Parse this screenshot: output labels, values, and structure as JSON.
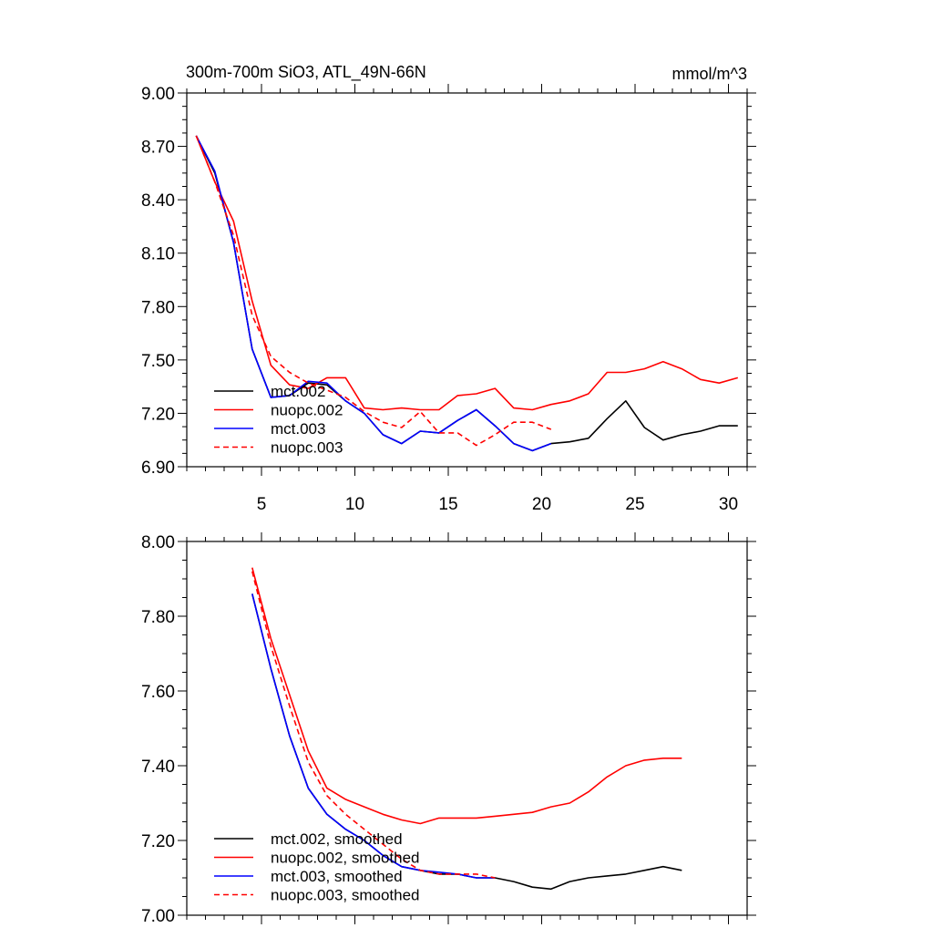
{
  "chart_data": [
    {
      "type": "line",
      "title": "300m-700m SiO3, ATL_49N-66N",
      "units": "mmol/m^3",
      "xlim": [
        1,
        31
      ],
      "ylim": [
        6.9,
        9.0
      ],
      "xticks": [
        5,
        10,
        15,
        20,
        25,
        30
      ],
      "xtick_labels": [
        "5",
        "10",
        "15",
        "20",
        "25",
        "30"
      ],
      "yticks": [
        6.9,
        7.2,
        7.5,
        7.8,
        8.1,
        8.4,
        8.7,
        9.0
      ],
      "ytick_labels": [
        "6.90",
        "7.20",
        "7.50",
        "7.80",
        "8.10",
        "8.40",
        "8.70",
        "9.00"
      ],
      "grid": false,
      "legend_position": "bottom-left",
      "series": [
        {
          "name": "mct.002",
          "color": "#000000",
          "dash": "solid",
          "x": [
            1.5,
            2.5,
            3.5,
            4.5,
            5.5,
            6.5,
            7.5,
            8.5,
            9.5,
            10.5,
            11.5,
            12.5,
            13.5,
            14.5,
            15.5,
            16.5,
            17.5,
            18.5,
            19.5,
            20.5,
            21.5,
            22.5,
            23.5,
            24.5,
            25.5,
            26.5,
            27.5,
            28.5,
            29.5,
            30.5
          ],
          "y": [
            8.76,
            8.55,
            8.16,
            7.56,
            7.29,
            7.3,
            7.37,
            7.36,
            7.27,
            7.2,
            7.08,
            7.03,
            7.1,
            7.09,
            7.16,
            7.22,
            7.13,
            7.03,
            6.99,
            7.03,
            7.04,
            7.06,
            7.17,
            7.27,
            7.12,
            7.05,
            7.08,
            7.1,
            7.13,
            7.13
          ]
        },
        {
          "name": "nuopc.002",
          "color": "#ff0000",
          "dash": "solid",
          "x": [
            1.5,
            2.5,
            3.5,
            4.5,
            5.5,
            6.5,
            7.5,
            8.5,
            9.5,
            10.5,
            11.5,
            12.5,
            13.5,
            14.5,
            15.5,
            16.5,
            17.5,
            18.5,
            19.5,
            20.5,
            21.5,
            22.5,
            23.5,
            24.5,
            25.5,
            26.5,
            27.5,
            28.5,
            29.5,
            30.5
          ],
          "y": [
            8.76,
            8.5,
            8.28,
            7.83,
            7.47,
            7.36,
            7.34,
            7.4,
            7.4,
            7.23,
            7.22,
            7.23,
            7.22,
            7.22,
            7.3,
            7.31,
            7.34,
            7.23,
            7.22,
            7.25,
            7.27,
            7.31,
            7.43,
            7.43,
            7.45,
            7.49,
            7.45,
            7.39,
            7.37,
            7.4
          ]
        },
        {
          "name": "mct.003",
          "color": "#0000ff",
          "dash": "solid",
          "x": [
            1.5,
            2.5,
            3.5,
            4.5,
            5.5,
            6.5,
            7.5,
            8.5,
            9.5,
            10.5,
            11.5,
            12.5,
            13.5,
            14.5,
            15.5,
            16.5,
            17.5,
            18.5,
            19.5,
            20.5
          ],
          "y": [
            8.76,
            8.56,
            8.16,
            7.56,
            7.29,
            7.3,
            7.38,
            7.37,
            7.27,
            7.2,
            7.08,
            7.03,
            7.1,
            7.09,
            7.16,
            7.22,
            7.13,
            7.03,
            6.99,
            7.03
          ]
        },
        {
          "name": "nuopc.003",
          "color": "#ff0000",
          "dash": "dashed",
          "x": [
            1.5,
            2.5,
            3.5,
            4.5,
            5.5,
            6.5,
            7.5,
            8.5,
            9.5,
            10.5,
            11.5,
            12.5,
            13.5,
            14.5,
            15.5,
            16.5,
            17.5,
            18.5,
            19.5,
            20.5
          ],
          "y": [
            8.76,
            8.5,
            8.2,
            7.75,
            7.52,
            7.43,
            7.37,
            7.33,
            7.29,
            7.21,
            7.15,
            7.12,
            7.21,
            7.09,
            7.09,
            7.02,
            7.08,
            7.15,
            7.15,
            7.11
          ]
        }
      ]
    },
    {
      "type": "line",
      "xlim": [
        1,
        31
      ],
      "ylim": [
        7.0,
        8.0
      ],
      "yticks": [
        7.0,
        7.2,
        7.4,
        7.6,
        7.8,
        8.0
      ],
      "ytick_labels": [
        "7.00",
        "7.20",
        "7.40",
        "7.60",
        "7.80",
        "8.00"
      ],
      "xticks": [
        5,
        10,
        15,
        20,
        25,
        30
      ],
      "grid": false,
      "legend_position": "bottom-left",
      "series": [
        {
          "name": "mct.002, smoothed",
          "color": "#000000",
          "dash": "solid",
          "x": [
            4.5,
            5.5,
            6.5,
            7.5,
            8.5,
            9.5,
            10.5,
            11.5,
            12.5,
            13.5,
            14.5,
            15.5,
            16.5,
            17.5,
            18.5,
            19.5,
            20.5,
            21.5,
            22.5,
            23.5,
            24.5,
            25.5,
            26.5,
            27.5
          ],
          "y": [
            7.86,
            7.66,
            7.48,
            7.34,
            7.27,
            7.23,
            7.2,
            7.16,
            7.13,
            7.12,
            7.11,
            7.11,
            7.1,
            7.1,
            7.09,
            7.075,
            7.07,
            7.09,
            7.1,
            7.105,
            7.11,
            7.12,
            7.13,
            7.12
          ]
        },
        {
          "name": "nuopc.002, smoothed",
          "color": "#ff0000",
          "dash": "solid",
          "x": [
            4.5,
            5.5,
            6.5,
            7.5,
            8.5,
            9.5,
            10.5,
            11.5,
            12.5,
            13.5,
            14.5,
            15.5,
            16.5,
            17.5,
            18.5,
            19.5,
            20.5,
            21.5,
            22.5,
            23.5,
            24.5,
            25.5,
            26.5,
            27.5
          ],
          "y": [
            7.93,
            7.74,
            7.59,
            7.44,
            7.34,
            7.31,
            7.29,
            7.27,
            7.255,
            7.245,
            7.26,
            7.26,
            7.26,
            7.265,
            7.27,
            7.275,
            7.29,
            7.3,
            7.33,
            7.37,
            7.4,
            7.415,
            7.42,
            7.42
          ]
        },
        {
          "name": "mct.003, smoothed",
          "color": "#0000ff",
          "dash": "solid",
          "x": [
            4.5,
            5.5,
            6.5,
            7.5,
            8.5,
            9.5,
            10.5,
            11.5,
            12.5,
            13.5,
            14.5,
            15.5,
            16.5,
            17.5
          ],
          "y": [
            7.86,
            7.66,
            7.48,
            7.34,
            7.27,
            7.23,
            7.2,
            7.16,
            7.13,
            7.12,
            7.115,
            7.11,
            7.1,
            7.1
          ]
        },
        {
          "name": "nuopc.003, smoothed",
          "color": "#ff0000",
          "dash": "dashed",
          "x": [
            4.5,
            5.5,
            6.5,
            7.5,
            8.5,
            9.5,
            10.5,
            11.5,
            12.5,
            13.5,
            14.5,
            15.5,
            16.5,
            17.5
          ],
          "y": [
            7.92,
            7.72,
            7.56,
            7.41,
            7.32,
            7.27,
            7.23,
            7.19,
            7.15,
            7.12,
            7.11,
            7.11,
            7.11,
            7.1
          ]
        }
      ]
    }
  ]
}
